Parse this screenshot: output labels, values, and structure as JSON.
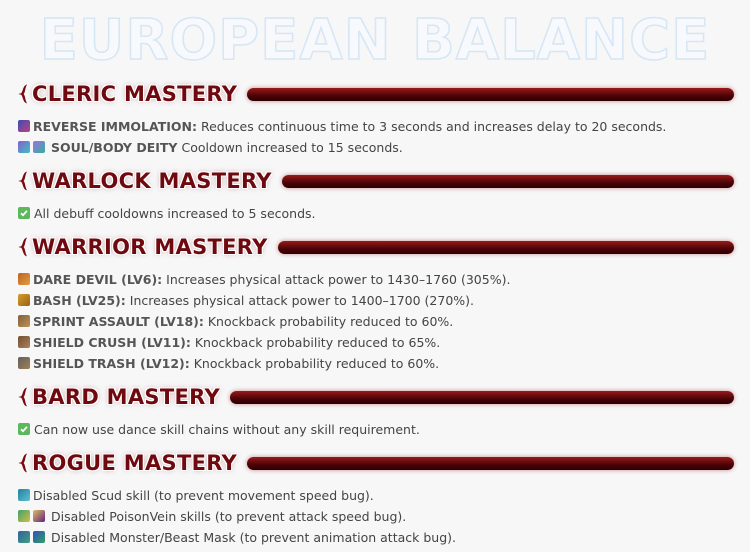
{
  "title": "EUROPEAN BALANCE",
  "sections": [
    {
      "heading": "CLERIC MASTERY",
      "items": [
        {
          "name": "REVERSE IMMOLATION:",
          "text": "Reduces continuous time to 3 seconds and increases delay to 20 seconds."
        },
        {
          "name": "SOUL/BODY DEITY",
          "text": "Cooldown increased to 15 seconds."
        }
      ]
    },
    {
      "heading": "WARLOCK MASTERY",
      "items": [
        {
          "text": "All debuff cooldowns increased to 5 seconds."
        }
      ]
    },
    {
      "heading": "WARRIOR MASTERY",
      "items": [
        {
          "name": "DARE DEVIL (LV6):",
          "text": "Increases physical attack power to 1430–1760 (305%)."
        },
        {
          "name": "BASH (LV25):",
          "text": "Increases physical attack power to 1400–1700 (270%)."
        },
        {
          "name": "SPRINT ASSAULT (LV18):",
          "text": "Knockback probability reduced to 60%."
        },
        {
          "name": "SHIELD CRUSH (LV11):",
          "text": "Knockback probability reduced to 65%."
        },
        {
          "name": "SHIELD TRASH (LV12):",
          "text": "Knockback probability reduced to 60%."
        }
      ]
    },
    {
      "heading": "BARD MASTERY",
      "items": [
        {
          "text": "Can now use dance skill chains without any skill requirement."
        }
      ]
    },
    {
      "heading": "ROGUE MASTERY",
      "items": [
        {
          "text": "Disabled Scud skill (to prevent movement speed bug)."
        },
        {
          "text": "Disabled PoisonVein skills (to prevent attack speed bug)."
        },
        {
          "text": "Disabled Monster/Beast Mask (to prevent animation attack bug)."
        }
      ]
    }
  ]
}
